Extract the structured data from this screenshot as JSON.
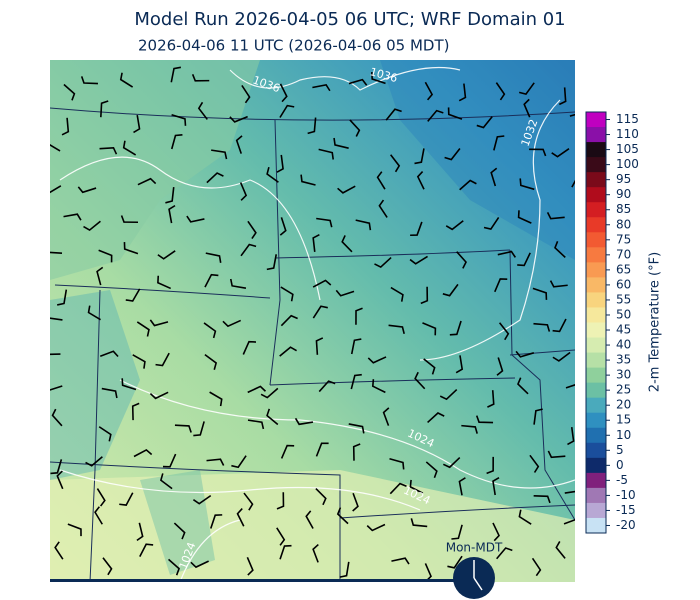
{
  "title": "Model Run 2026-04-05 06 UTC; WRF Domain 01",
  "subtitle": "2026-04-06 11 UTC  (2026-04-06 05 MDT)",
  "colorbar": {
    "label": "2-m Temperature (°F)",
    "lim": [
      -22.5,
      117.5
    ],
    "ticks": [
      115,
      110,
      105,
      100,
      95,
      90,
      85,
      80,
      75,
      70,
      65,
      60,
      55,
      50,
      45,
      40,
      35,
      30,
      25,
      20,
      15,
      10,
      5,
      0,
      -5,
      -10,
      -15,
      -20
    ],
    "colors": [
      "#c000c0",
      "#8a10a8",
      "#1a0a14",
      "#3a0a18",
      "#7a0a1a",
      "#b00c1c",
      "#d41e22",
      "#e83a28",
      "#f25a32",
      "#f77a40",
      "#f99a52",
      "#f9b866",
      "#f8d47e",
      "#f6e89c",
      "#eef2b4",
      "#d6ecb0",
      "#b6e0a6",
      "#8fd09c",
      "#6cc0a4",
      "#4aaabc",
      "#2f90c0",
      "#2070b0",
      "#1a4e9c",
      "#0e2a6a",
      "#80207c",
      "#a078b4",
      "#b8a8d4",
      "#c8e2f4"
    ]
  },
  "contour_labels": [
    "1036",
    "1036",
    "1032",
    "1024",
    "1024",
    "1024"
  ],
  "clock_label": "Mon-MDT"
}
